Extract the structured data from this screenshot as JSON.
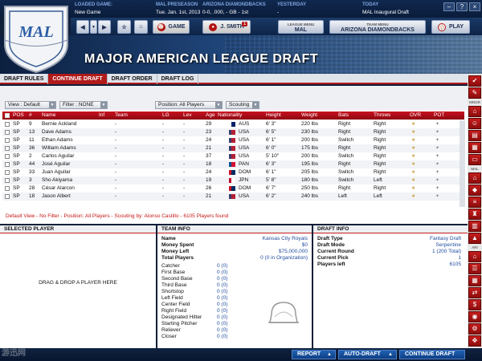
{
  "topbar": {
    "loaded_game_label": "LOADED GAME:",
    "loaded_game_value": "New Game",
    "league_label": "MAL PRESEASON",
    "date": "Tue. Jan. 1st, 2013",
    "team_label": "ARIZONA DIAMONDBACKS",
    "team_record": "0-0, .000, - GB - 1st",
    "yesterday_label": "YESTERDAY",
    "yesterday_value": "-",
    "today_label": "TODAY",
    "today_value": "MAL Inaugural Draft"
  },
  "nav": {
    "game_label": "GAME",
    "manager_label": "J. SMITH",
    "manager_badge": "1",
    "league_menu_label": "LEAGUE MENU",
    "league_menu_value": "MAL",
    "team_menu_label": "TEAM MENU",
    "team_menu_value": "ARIZONA DIAMONDBACKS",
    "play_label": "PLAY"
  },
  "page_title": "MAJOR AMERICAN LEAGUE DRAFT",
  "logo_text": "MAL",
  "tabs": [
    {
      "label": "DRAFT RULES"
    },
    {
      "label": "CONTINUE DRAFT"
    },
    {
      "label": "DRAFT ORDER"
    },
    {
      "label": "DRAFT LOG"
    }
  ],
  "filters": {
    "view": "View : Default",
    "filter": "Filter : NONE",
    "position": "Position: All Players",
    "scouting": "Scouting"
  },
  "table": {
    "headers": {
      "pos": "POS",
      "num": "#",
      "name": "Name",
      "inf": "Inf",
      "team": "Team",
      "lg": "LG",
      "lev": "Lev",
      "age": "Age",
      "nationality": "Nationality",
      "height": "Height",
      "weight": "Weight",
      "bats": "Bats",
      "throws": "Throws",
      "ovr": "OVR",
      "pot": "POT"
    },
    "rows": [
      {
        "pos": "SP",
        "num": "9",
        "name": "Bernie Ackland",
        "inf": "",
        "team": "-",
        "lg": "-",
        "lev": "-",
        "age": "29",
        "nat": "AUS",
        "height": "6' 3\"",
        "weight": "220 lbs",
        "bats": "Right",
        "throws": "Right"
      },
      {
        "pos": "SP",
        "num": "13",
        "name": "Dave Adams",
        "inf": "",
        "team": "-",
        "lg": "-",
        "lev": "-",
        "age": "23",
        "nat": "USA",
        "height": "6' 5\"",
        "weight": "230 lbs",
        "bats": "Right",
        "throws": "Right"
      },
      {
        "pos": "SP",
        "num": "11",
        "name": "Ethan Adams",
        "inf": "",
        "team": "-",
        "lg": "-",
        "lev": "-",
        "age": "24",
        "nat": "USA",
        "height": "6' 1\"",
        "weight": "200 lbs",
        "bats": "Switch",
        "throws": "Right"
      },
      {
        "pos": "SP",
        "num": "36",
        "name": "William Adams",
        "inf": "",
        "team": "-",
        "lg": "-",
        "lev": "-",
        "age": "21",
        "nat": "USA",
        "height": "6' 0\"",
        "weight": "175 lbs",
        "bats": "Right",
        "throws": "Right"
      },
      {
        "pos": "SP",
        "num": "2",
        "name": "Carlos Aguilar",
        "inf": "",
        "team": "-",
        "lg": "-",
        "lev": "-",
        "age": "37",
        "nat": "USA",
        "height": "5' 10\"",
        "weight": "200 lbs",
        "bats": "Switch",
        "throws": "Right"
      },
      {
        "pos": "SP",
        "num": "44",
        "name": "José Aguilar",
        "inf": "",
        "team": "-",
        "lg": "-",
        "lev": "-",
        "age": "18",
        "nat": "PAN",
        "height": "6' 3\"",
        "weight": "195 lbs",
        "bats": "Right",
        "throws": "Right"
      },
      {
        "pos": "SP",
        "num": "33",
        "name": "Juan Aguilar",
        "inf": "",
        "team": "-",
        "lg": "-",
        "lev": "-",
        "age": "24",
        "nat": "DOM",
        "height": "6' 1\"",
        "weight": "205 lbs",
        "bats": "Switch",
        "throws": "Right"
      },
      {
        "pos": "SP",
        "num": "3",
        "name": "Sho Akiyama",
        "inf": "",
        "team": "-",
        "lg": "-",
        "lev": "-",
        "age": "19",
        "nat": "JPN",
        "height": "5' 8\"",
        "weight": "180 lbs",
        "bats": "Switch",
        "throws": "Left"
      },
      {
        "pos": "SP",
        "num": "28",
        "name": "César Alarcon",
        "inf": "",
        "team": "-",
        "lg": "-",
        "lev": "-",
        "age": "26",
        "nat": "DOM",
        "height": "6' 7\"",
        "weight": "250 lbs",
        "bats": "Right",
        "throws": "Right"
      },
      {
        "pos": "SP",
        "num": "18",
        "name": "Jason Albert",
        "inf": "",
        "team": "-",
        "lg": "-",
        "lev": "-",
        "age": "21",
        "nat": "USA",
        "height": "6' 2\"",
        "weight": "240 lbs",
        "bats": "Left",
        "throws": "Left"
      }
    ],
    "status": "Default View - No Filter - Position: All Players - Scouting by: Alonso Castillo - 6105 Players found"
  },
  "selected_player": {
    "header": "SELECTED PLAYER",
    "placeholder": "DRAG & DROP A PLAYER HERE"
  },
  "team_info": {
    "header": "TEAM INFO",
    "name_label": "Name",
    "name_value": "Kansas City Royals",
    "money_spent_label": "Money Spent",
    "money_spent_value": "$0",
    "money_left_label": "Money Left",
    "money_left_value": "$75,000,000",
    "total_players_label": "Total Players",
    "total_players_value": "0 (0 in Organization)",
    "positions": [
      {
        "label": "Catcher",
        "value": "0 (0)"
      },
      {
        "label": "First Base",
        "value": "0 (0)"
      },
      {
        "label": "Second Base",
        "value": "0 (0)"
      },
      {
        "label": "Third Base",
        "value": "0 (0)"
      },
      {
        "label": "Shortstop",
        "value": "0 (0)"
      },
      {
        "label": "Left Field",
        "value": "0 (0)"
      },
      {
        "label": "Center Field",
        "value": "0 (0)"
      },
      {
        "label": "Right Field",
        "value": "0 (0)"
      },
      {
        "label": "Designated Hitter",
        "value": "0 (0)"
      },
      {
        "label": "Starting Pitcher",
        "value": "0 (0)"
      },
      {
        "label": "Reliever",
        "value": "0 (0)"
      },
      {
        "label": "Closer",
        "value": "0 (0)"
      }
    ]
  },
  "draft_info": {
    "header": "DRAFT INFO",
    "type_label": "Draft Type",
    "type_value": "Fantasy Draft",
    "mode_label": "Draft Mode",
    "mode_value": "Serpentine",
    "round_label": "Current Round",
    "round_value": "1 (200 Total)",
    "pick_label": "Current Pick",
    "pick_value": "1",
    "left_label": "Players left",
    "left_value": "6105"
  },
  "bottom": {
    "report": "REPORT",
    "auto_draft": "AUTO-DRAFT",
    "continue": "CONTINUE DRAFT"
  },
  "side_labels": {
    "mngr": "MNGR",
    "mal": "MAL",
    "ari": "ARI"
  },
  "watermark": "游迅网",
  "colors": {
    "accent_red": "#b11a1a",
    "nav_blue": "#0f2240",
    "value_blue": "#214e9e"
  }
}
